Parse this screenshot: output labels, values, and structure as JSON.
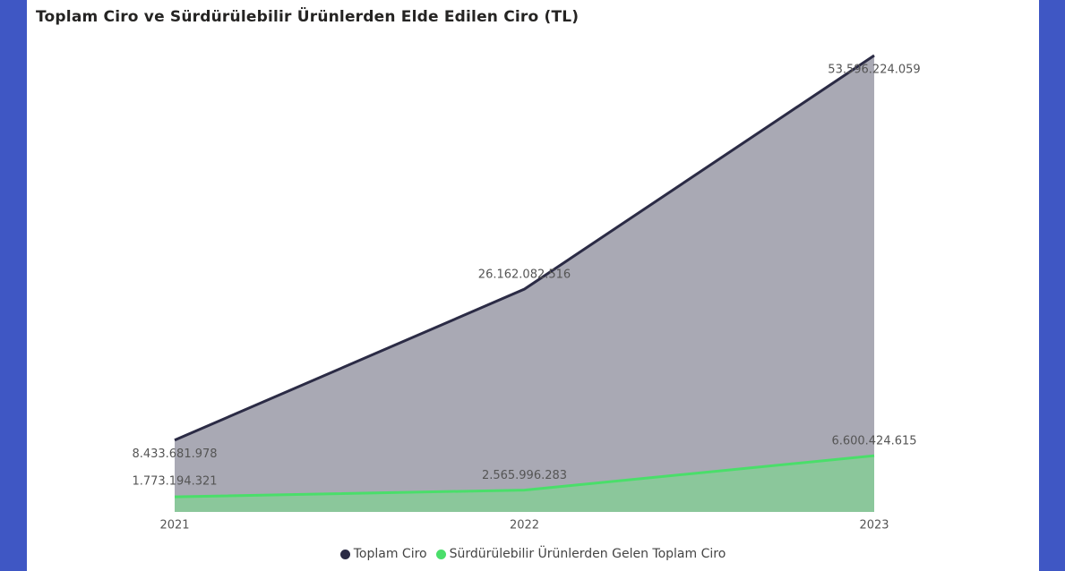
{
  "chart_data": {
    "type": "area",
    "title": "Toplam Ciro ve Sürdürülebilir Ürünlerden Elde Edilen Ciro (TL)",
    "categories": [
      "2021",
      "2022",
      "2023"
    ],
    "series": [
      {
        "name": "Toplam Ciro",
        "color": "#2b2b45",
        "area_color": "#a9a9b4",
        "values": [
          8433681978,
          26162082516,
          53596224059
        ],
        "value_labels": [
          "8.433.681.978",
          "26.162.082.516",
          "53.596.224.059"
        ]
      },
      {
        "name": "Sürdürülebilir Ürünlerden Gelen Toplam Ciro",
        "color": "#4ade6a",
        "area_color": "#8bc79b",
        "values": [
          1773194321,
          2565996283,
          6600424615
        ],
        "value_labels": [
          "1.773.194.321",
          "2.565.996.283",
          "6.600.424.615"
        ]
      }
    ]
  }
}
